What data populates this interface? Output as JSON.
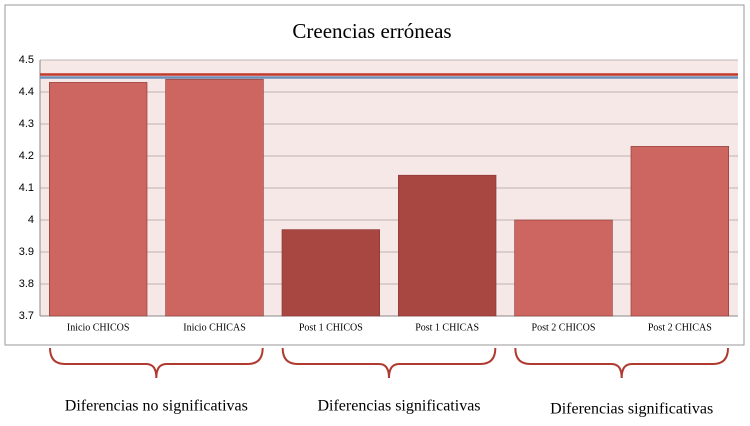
{
  "chart_data": {
    "type": "bar",
    "title": "Creencias erróneas",
    "categories": [
      "Inicio CHICOS",
      "Inicio CHICAS",
      "Post 1 CHICOS",
      "Post 1 CHICAS",
      "Post 2 CHICOS",
      "Post 2 CHICAS"
    ],
    "values": [
      4.43,
      4.44,
      3.97,
      4.14,
      4.0,
      4.23
    ],
    "colors": [
      "#cd6660",
      "#cd6660",
      "#a84741",
      "#a84741",
      "#cd6660",
      "#cd6660"
    ],
    "ylim": [
      3.7,
      4.5
    ],
    "yticks": [
      3.7,
      3.8,
      3.9,
      4,
      4.1,
      4.2,
      4.3,
      4.4,
      4.5
    ],
    "grid": true,
    "hline": 4.45,
    "annotations": [
      "Diferencias no significativas",
      "Diferencias significativas",
      "Diferencias significativas"
    ]
  }
}
